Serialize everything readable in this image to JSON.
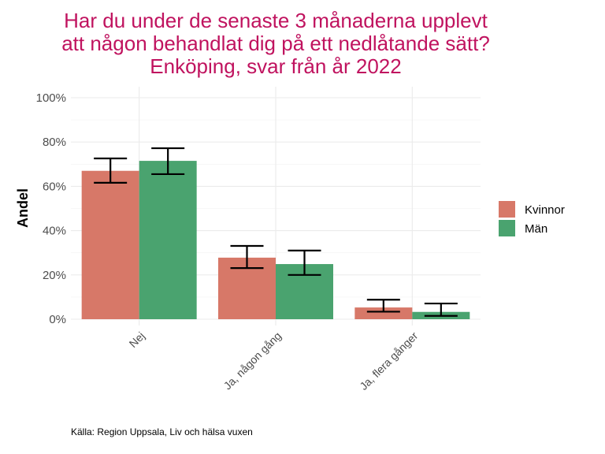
{
  "chart_data": {
    "type": "bar",
    "title": [
      "Har du under de senaste 3 månaderna upplevt",
      "att någon behandlat dig på ett nedlåtande sätt?",
      "Enköping, svar från år 2022"
    ],
    "ylabel": "Andel",
    "xlabel": "",
    "ylim": [
      0,
      100
    ],
    "yticks": [
      0,
      20,
      40,
      60,
      80,
      100
    ],
    "ytick_labels": [
      "0%",
      "20%",
      "40%",
      "60%",
      "80%",
      "100%"
    ],
    "categories": [
      "Nej",
      "Ja, någon gång",
      "Ja, flera gånger"
    ],
    "series": [
      {
        "name": "Kvinnor",
        "color": "#d77868",
        "values": [
          67,
          27.8,
          5.3
        ],
        "err_low": [
          61.6,
          23.1,
          3.4
        ],
        "err_high": [
          72.6,
          33.1,
          8.8
        ]
      },
      {
        "name": "Män",
        "color": "#4aa36f",
        "values": [
          71.5,
          24.9,
          3.3
        ],
        "err_low": [
          65.5,
          20,
          1.5
        ],
        "err_high": [
          77.2,
          31,
          7.1
        ]
      }
    ],
    "legend_position": "right",
    "grid": true,
    "caption": "Källa: Region Uppsala, Liv och hälsa vuxen"
  }
}
